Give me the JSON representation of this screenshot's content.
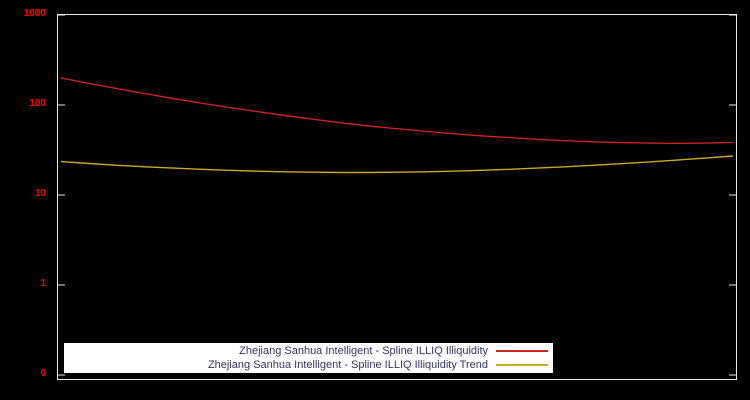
{
  "chart_data": {
    "type": "line",
    "title": "",
    "xlabel": "",
    "ylabel": "",
    "scale": "log",
    "ylim": [
      0.1,
      1000
    ],
    "grid": false,
    "legend_position": "bottom-left-inside",
    "background": "#000000",
    "axis_color": "#ebebeb",
    "tick_label_color": "#ff0000",
    "legend_background": "#ffffff",
    "legend_text_color": "#333366",
    "ytick_labels": [
      "1000",
      "100",
      "10",
      "1",
      "0"
    ],
    "series": [
      {
        "name": "Zhejiang Sanhua Intelligent - Spline ILLIQ Illiquidity",
        "color": "#cc2222",
        "values": [
          200,
          174,
          152,
          134,
          118,
          105,
          94,
          84.5,
          76.5,
          69.5,
          63.5,
          58.5,
          54.5,
          51,
          48,
          45.5,
          43.4,
          41.6,
          40.1,
          39,
          38.2,
          37.7,
          37.5,
          37.7,
          38.4
        ]
      },
      {
        "name": "Zhejiang Sanhua Intelligent - Spline ILLIQ Illiquidity Trend",
        "color": "#ccaa22",
        "values": [
          23.5,
          22.4,
          21.4,
          20.6,
          19.9,
          19.3,
          18.8,
          18.4,
          18.1,
          17.9,
          17.8,
          17.8,
          17.9,
          18.1,
          18.4,
          18.8,
          19.3,
          19.9,
          20.6,
          21.4,
          22.3,
          23.3,
          24.4,
          25.7,
          27.1
        ]
      }
    ]
  }
}
